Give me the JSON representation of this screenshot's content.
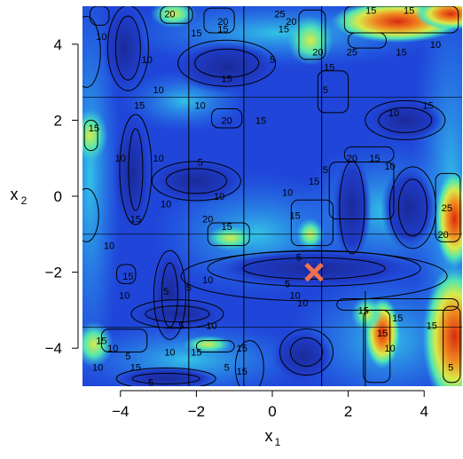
{
  "chart_data": {
    "type": "heatmap",
    "title": "",
    "xlabel": "x",
    "xlabel_sub": "1",
    "ylabel": "x",
    "ylabel_sub": "2",
    "xlim": [
      -5,
      5
    ],
    "ylim": [
      -5,
      5
    ],
    "xticks": [
      -4,
      -2,
      0,
      2,
      4
    ],
    "yticks": [
      -4,
      -2,
      0,
      2,
      4
    ],
    "xtick_labels": [
      "−4",
      "−2",
      "0",
      "2",
      "4"
    ],
    "ytick_labels": [
      "−4",
      "−2",
      "0",
      "2",
      "4"
    ],
    "contour_levels": [
      5,
      10,
      15,
      20,
      25
    ],
    "contour_labels": [
      {
        "x": -2.7,
        "y": 4.8,
        "text": "20"
      },
      {
        "x": -1.3,
        "y": 4.6,
        "text": "20"
      },
      {
        "x": -2.0,
        "y": 4.3,
        "text": "15"
      },
      {
        "x": 0.2,
        "y": 4.8,
        "text": "25"
      },
      {
        "x": 0.5,
        "y": 4.6,
        "text": "20"
      },
      {
        "x": 0.3,
        "y": 4.4,
        "text": "15"
      },
      {
        "x": -4.5,
        "y": 4.2,
        "text": "10"
      },
      {
        "x": -3.3,
        "y": 3.6,
        "text": "10"
      },
      {
        "x": -3.0,
        "y": 2.8,
        "text": "10"
      },
      {
        "x": -1.3,
        "y": 4.4,
        "text": "15"
      },
      {
        "x": 2.6,
        "y": 4.9,
        "text": "15"
      },
      {
        "x": 3.6,
        "y": 4.9,
        "text": "15"
      },
      {
        "x": 1.2,
        "y": 3.8,
        "text": "20"
      },
      {
        "x": 2.1,
        "y": 3.8,
        "text": "25"
      },
      {
        "x": 3.4,
        "y": 3.8,
        "text": "15"
      },
      {
        "x": 4.3,
        "y": 4.0,
        "text": "10"
      },
      {
        "x": 1.5,
        "y": 3.4,
        "text": "15"
      },
      {
        "x": -3.5,
        "y": 2.4,
        "text": "15"
      },
      {
        "x": -1.2,
        "y": 3.1,
        "text": "15"
      },
      {
        "x": 0.0,
        "y": 3.6,
        "text": "5"
      },
      {
        "x": -1.9,
        "y": 2.4,
        "text": "10"
      },
      {
        "x": -1.2,
        "y": 2.0,
        "text": "20"
      },
      {
        "x": -0.3,
        "y": 2.0,
        "text": "15"
      },
      {
        "x": -4.7,
        "y": 1.8,
        "text": "15"
      },
      {
        "x": -4.0,
        "y": 1.0,
        "text": "10"
      },
      {
        "x": -3.0,
        "y": 1.0,
        "text": "10"
      },
      {
        "x": -1.9,
        "y": 0.9,
        "text": "5"
      },
      {
        "x": 1.4,
        "y": 2.8,
        "text": "5"
      },
      {
        "x": 3.2,
        "y": 2.2,
        "text": "10"
      },
      {
        "x": 4.1,
        "y": 2.4,
        "text": "15"
      },
      {
        "x": 2.1,
        "y": 1.0,
        "text": "20"
      },
      {
        "x": 2.7,
        "y": 1.0,
        "text": "15"
      },
      {
        "x": 3.1,
        "y": 0.8,
        "text": "10"
      },
      {
        "x": 1.4,
        "y": 0.7,
        "text": "5"
      },
      {
        "x": 1.1,
        "y": 0.4,
        "text": "15"
      },
      {
        "x": 0.4,
        "y": 0.1,
        "text": "10"
      },
      {
        "x": -2.8,
        "y": -0.2,
        "text": "10"
      },
      {
        "x": -1.4,
        "y": 0.0,
        "text": "10"
      },
      {
        "x": -3.6,
        "y": -0.6,
        "text": "15"
      },
      {
        "x": -1.7,
        "y": -0.6,
        "text": "20"
      },
      {
        "x": -1.2,
        "y": -0.8,
        "text": "15"
      },
      {
        "x": 0.6,
        "y": -0.5,
        "text": "15"
      },
      {
        "x": 4.6,
        "y": -0.3,
        "text": "25"
      },
      {
        "x": 4.5,
        "y": -1.0,
        "text": "20"
      },
      {
        "x": -4.3,
        "y": -1.3,
        "text": "10"
      },
      {
        "x": 0.7,
        "y": -1.6,
        "text": "5"
      },
      {
        "x": -3.8,
        "y": -2.1,
        "text": "15"
      },
      {
        "x": -1.7,
        "y": -2.2,
        "text": "10"
      },
      {
        "x": -2.2,
        "y": -2.4,
        "text": "5"
      },
      {
        "x": -2.8,
        "y": -2.5,
        "text": "5"
      },
      {
        "x": -3.9,
        "y": -2.6,
        "text": "10"
      },
      {
        "x": 0.4,
        "y": -2.3,
        "text": "5"
      },
      {
        "x": 0.6,
        "y": -2.6,
        "text": "10"
      },
      {
        "x": 0.8,
        "y": -2.8,
        "text": "10"
      },
      {
        "x": -1.6,
        "y": -3.4,
        "text": "10"
      },
      {
        "x": -2.4,
        "y": -3.4,
        "text": "5"
      },
      {
        "x": 2.4,
        "y": -3.0,
        "text": "15"
      },
      {
        "x": 3.3,
        "y": -3.2,
        "text": "15"
      },
      {
        "x": 4.2,
        "y": -3.4,
        "text": "15"
      },
      {
        "x": 2.9,
        "y": -3.6,
        "text": "15"
      },
      {
        "x": 3.1,
        "y": -4.0,
        "text": "10"
      },
      {
        "x": -4.5,
        "y": -3.8,
        "text": "15"
      },
      {
        "x": -4.2,
        "y": -4.0,
        "text": "10"
      },
      {
        "x": -3.8,
        "y": -4.2,
        "text": "5"
      },
      {
        "x": -2.7,
        "y": -4.1,
        "text": "10"
      },
      {
        "x": -0.8,
        "y": -4.0,
        "text": "15"
      },
      {
        "x": -2.0,
        "y": -4.1,
        "text": "15"
      },
      {
        "x": -3.6,
        "y": -4.5,
        "text": "15"
      },
      {
        "x": -4.6,
        "y": -4.5,
        "text": "10"
      },
      {
        "x": -1.2,
        "y": -4.5,
        "text": "5"
      },
      {
        "x": -0.8,
        "y": -4.6,
        "text": "15"
      },
      {
        "x": -3.2,
        "y": -4.9,
        "text": "5"
      },
      {
        "x": 4.7,
        "y": -4.5,
        "text": "5"
      }
    ],
    "marker": {
      "x": 1.1,
      "y": -2.0,
      "symbol": "x",
      "color": "#f07050"
    },
    "colormap": [
      "#1a2a99",
      "#1f46d8",
      "#2a7af2",
      "#33c4e6",
      "#52e6b0",
      "#d8ea4a",
      "#f08a20",
      "#d82a10"
    ]
  }
}
